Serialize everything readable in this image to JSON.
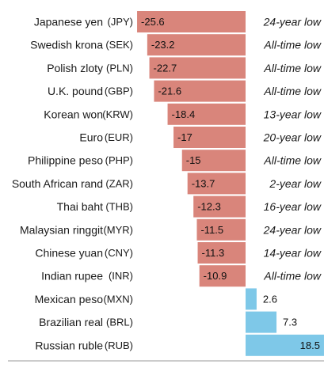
{
  "chart_data": {
    "type": "bar",
    "orientation": "horizontal",
    "categories": [
      {
        "name": "Japanese yen",
        "code": "(JPY)"
      },
      {
        "name": "Swedish krona",
        "code": "(SEK)"
      },
      {
        "name": "Polish zloty",
        "code": "(PLN)"
      },
      {
        "name": "U.K. pound",
        "code": "(GBP)"
      },
      {
        "name": "Korean won",
        "code": "(KRW)"
      },
      {
        "name": "Euro",
        "code": "(EUR)"
      },
      {
        "name": "Philippine peso",
        "code": "(PHP)"
      },
      {
        "name": "South African rand",
        "code": "(ZAR)"
      },
      {
        "name": "Thai baht",
        "code": "(THB)"
      },
      {
        "name": "Malaysian ringgit",
        "code": "(MYR)"
      },
      {
        "name": "Chinese yuan",
        "code": "(CNY)"
      },
      {
        "name": "Indian rupee",
        "code": "(INR)"
      },
      {
        "name": "Mexican peso",
        "code": "(MXN)"
      },
      {
        "name": "Brazilian real",
        "code": "(BRL)"
      },
      {
        "name": "Russian ruble",
        "code": "(RUB)"
      }
    ],
    "values": [
      -25.6,
      -23.2,
      -22.7,
      -21.6,
      -18.4,
      -17,
      -15,
      -13.7,
      -12.3,
      -11.5,
      -11.3,
      -10.9,
      2.6,
      7.3,
      18.5
    ],
    "value_labels": [
      "-25.6",
      "-23.2",
      "-22.7",
      "-21.6",
      "-18.4",
      "-17",
      "-15",
      "-13.7",
      "-12.3",
      "-11.5",
      "-11.3",
      "-10.9",
      "2.6",
      "7.3",
      "18.5"
    ],
    "annotations": [
      "24-year low",
      "All-time low",
      "All-time low",
      "All-time low",
      "13-year low",
      "20-year low",
      "All-time low",
      "2-year low",
      "16-year low",
      "24-year low",
      "14-year low",
      "All-time low",
      "",
      "",
      ""
    ],
    "colors": {
      "negative": "#d9857b",
      "positive": "#7ec8e8"
    },
    "title": "",
    "xlabel": "",
    "ylabel": "",
    "grid": false,
    "legend": "none"
  }
}
